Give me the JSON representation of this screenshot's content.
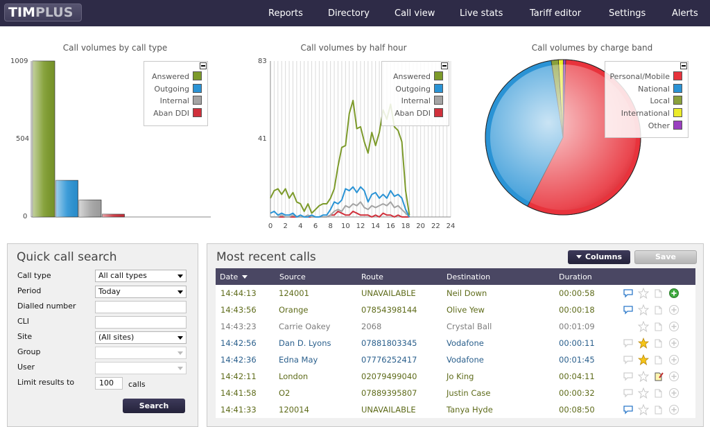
{
  "app": {
    "logo_main": "TIM",
    "logo_accent": "PLUS"
  },
  "nav": [
    "Reports",
    "Directory",
    "Call view",
    "Live stats",
    "Tariff editor",
    "Settings",
    "Alerts"
  ],
  "colors": {
    "answered": "#7c9a2a",
    "outgoing": "#2a93d5",
    "internal": "#a4a4a4",
    "aban_ddi": "#d0303b",
    "local": "#8aa03c",
    "international": "#ecec2a",
    "other": "#9a3fc0",
    "nav_bg": "#2e2b47"
  },
  "charts": [
    {
      "type": "bar",
      "title": "Call volumes by call type",
      "y_ticks": [
        "1009",
        "504",
        "0"
      ],
      "ylim": [
        0,
        1009
      ],
      "categories": [
        "Answered",
        "Outgoing",
        "Internal",
        "Aban DDI"
      ],
      "values": [
        1009,
        237,
        110,
        18
      ],
      "legend": [
        "Answered",
        "Outgoing",
        "Internal",
        "Aban DDI"
      ]
    },
    {
      "type": "line",
      "title": "Call volumes by half hour",
      "y_ticks": [
        "83",
        "41"
      ],
      "ylim": [
        0,
        83
      ],
      "x_ticks": [
        "0",
        "2",
        "4",
        "6",
        "8",
        "10",
        "12",
        "14",
        "16",
        "18",
        "20",
        "22",
        "24"
      ],
      "x": [
        0,
        0.5,
        1,
        1.5,
        2,
        2.5,
        3,
        3.5,
        4,
        4.5,
        5,
        5.5,
        6,
        6.5,
        7,
        7.5,
        8,
        8.5,
        9,
        9.5,
        10,
        10.5,
        11,
        11.5,
        12,
        12.5,
        13,
        13.5,
        14,
        14.5,
        15,
        15.5,
        16,
        16.5,
        17,
        17.5,
        18,
        18.5
      ],
      "series": [
        {
          "name": "Answered",
          "values": [
            10,
            14,
            15,
            12,
            15,
            10,
            13,
            8,
            7,
            3,
            7,
            2,
            4,
            6,
            7,
            7,
            10,
            15,
            27,
            37,
            38,
            55,
            62,
            47,
            48,
            40,
            34,
            45,
            38,
            45,
            57,
            52,
            60,
            48,
            46,
            40,
            14,
            1
          ]
        },
        {
          "name": "Outgoing",
          "values": [
            2,
            3,
            1,
            2,
            1,
            1,
            2,
            0,
            1,
            0,
            0,
            1,
            0,
            0,
            1,
            1,
            4,
            8,
            7,
            9,
            15,
            14,
            16,
            13,
            16,
            14,
            8,
            12,
            13,
            10,
            12,
            10,
            14,
            11,
            12,
            10,
            4,
            0
          ]
        },
        {
          "name": "Internal",
          "values": [
            0,
            0,
            0,
            1,
            0,
            0,
            1,
            0,
            0,
            0,
            1,
            0,
            0,
            0,
            0,
            0,
            1,
            3,
            4,
            3,
            6,
            5,
            7,
            6,
            8,
            5,
            4,
            6,
            5,
            6,
            7,
            6,
            8,
            5,
            6,
            4,
            2,
            0
          ]
        },
        {
          "name": "Aban DDI",
          "values": [
            0,
            0,
            0,
            0,
            0,
            0,
            0,
            0,
            0,
            0,
            0,
            0,
            0,
            0,
            0,
            0,
            1,
            1,
            3,
            2,
            1,
            1,
            3,
            2,
            1,
            1,
            1,
            0,
            1,
            0,
            2,
            1,
            1,
            0,
            1,
            0,
            0,
            0
          ]
        }
      ],
      "legend": [
        "Answered",
        "Outgoing",
        "Internal",
        "Aban DDI"
      ]
    },
    {
      "type": "pie",
      "title": "Call volumes by charge band",
      "slices": [
        {
          "name": "Personal/Mobile",
          "value": 57,
          "color": "#e8333c"
        },
        {
          "name": "National",
          "value": 40,
          "color": "#2a93d5"
        },
        {
          "name": "Local",
          "value": 1.5,
          "color": "#8aa03c"
        },
        {
          "name": "International",
          "value": 1,
          "color": "#ecec2a"
        },
        {
          "name": "Other",
          "value": 0.5,
          "color": "#9a3fc0"
        }
      ],
      "legend": [
        "Personal/Mobile",
        "National",
        "Local",
        "International",
        "Other"
      ]
    }
  ],
  "quick_search": {
    "title": "Quick call search",
    "fields": [
      {
        "label": "Call type",
        "value": "All call types",
        "kind": "select"
      },
      {
        "label": "Period",
        "value": "Today",
        "kind": "select"
      },
      {
        "label": "Dialled number",
        "value": "",
        "kind": "input"
      },
      {
        "label": "CLI",
        "value": "",
        "kind": "input"
      },
      {
        "label": "Site",
        "value": "(All sites)",
        "kind": "select"
      },
      {
        "label": "Group",
        "value": "",
        "kind": "select-disabled"
      },
      {
        "label": "User",
        "value": "",
        "kind": "select-disabled"
      }
    ],
    "limit_label": "Limit results to",
    "limit_value": "100",
    "limit_suffix": "calls",
    "search_button": "Search"
  },
  "recent_calls": {
    "title": "Most recent calls",
    "columns_button": "Columns",
    "save_button": "Save",
    "headers": [
      "Date",
      "Source",
      "Route",
      "Destination",
      "Duration"
    ],
    "rows": [
      {
        "date": "14:44:13",
        "source": "124001",
        "route": "UNAVAILABLE",
        "destination": "Neil Down",
        "duration": "00:00:58",
        "tone": "olive",
        "note": "blue",
        "star": false,
        "edit": false,
        "add": "green"
      },
      {
        "date": "14:43:56",
        "source": "Orange",
        "route": "07854398144",
        "destination": "Olive Yew",
        "duration": "00:00:18",
        "tone": "olive",
        "note": "blue",
        "star": false,
        "edit": false,
        "add": "grey"
      },
      {
        "date": "14:43:23",
        "source": "Carrie Oakey",
        "route": "2068",
        "destination": "Crystal Ball",
        "duration": "00:01:09",
        "tone": "grey",
        "note": "none",
        "star": false,
        "edit": false,
        "add": "grey"
      },
      {
        "date": "14:42:56",
        "source": "Dan D. Lyons",
        "route": "07881803345",
        "destination": "Vodafone",
        "duration": "00:00:11",
        "tone": "blue",
        "note": "empty",
        "star": true,
        "edit": false,
        "add": "grey"
      },
      {
        "date": "14:42:36",
        "source": "Edna May",
        "route": "07776252417",
        "destination": "Vodafone",
        "duration": "00:01:45",
        "tone": "blue",
        "note": "empty",
        "star": true,
        "edit": false,
        "add": "grey"
      },
      {
        "date": "14:42:11",
        "source": "London",
        "route": "02079499040",
        "destination": "Jo King",
        "duration": "00:04:11",
        "tone": "olive",
        "note": "empty",
        "star": false,
        "edit": true,
        "add": "grey"
      },
      {
        "date": "14:41:58",
        "source": "O2",
        "route": "07889395807",
        "destination": "Justin Case",
        "duration": "00:00:32",
        "tone": "olive",
        "note": "empty",
        "star": false,
        "edit": false,
        "add": "grey"
      },
      {
        "date": "14:41:33",
        "source": "120014",
        "route": "UNAVAILABLE",
        "destination": "Tanya Hyde",
        "duration": "00:08:50",
        "tone": "olive",
        "note": "blue",
        "star": false,
        "edit": false,
        "add": "grey"
      }
    ]
  }
}
